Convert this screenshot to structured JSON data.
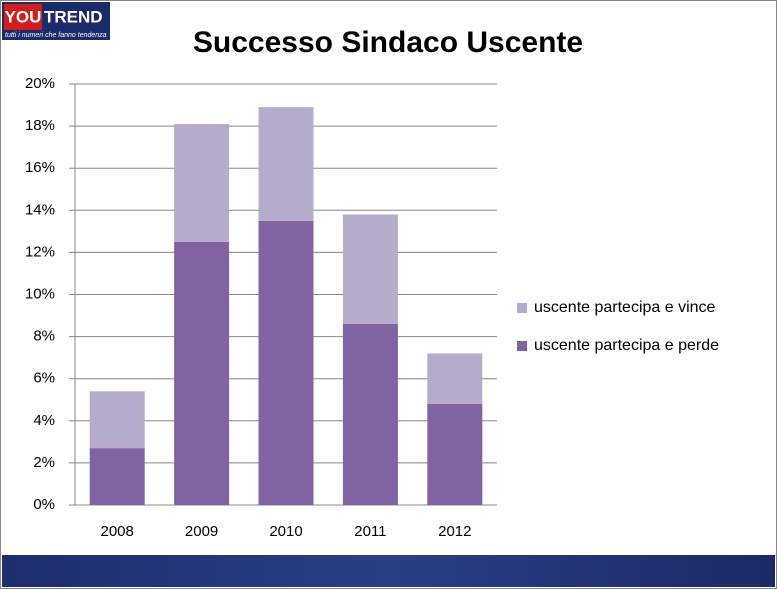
{
  "logo": {
    "left": "YOU",
    "right": "TREND",
    "tagline": "tutti i numeri che fanno tendenza"
  },
  "chart_data": {
    "type": "bar",
    "stacked": true,
    "title": "Successo Sindaco Uscente",
    "categories": [
      "2008",
      "2009",
      "2010",
      "2011",
      "2012"
    ],
    "series": [
      {
        "name": "uscente partecipa e perde",
        "color": "#8064a2",
        "values": [
          2.7,
          12.5,
          13.5,
          8.6,
          4.8
        ]
      },
      {
        "name": "uscente partecipa e vince",
        "color": "#b7abcc",
        "values": [
          2.7,
          5.6,
          5.4,
          5.2,
          2.4
        ]
      }
    ],
    "ylim": [
      0,
      20
    ],
    "yticks": [
      {
        "value": 0,
        "label": "0%"
      },
      {
        "value": 2,
        "label": "2%"
      },
      {
        "value": 4,
        "label": "4%"
      },
      {
        "value": 6,
        "label": "6%"
      },
      {
        "value": 8,
        "label": "8%"
      },
      {
        "value": 10,
        "label": "10%"
      },
      {
        "value": 12,
        "label": "12%"
      },
      {
        "value": 14,
        "label": "14%"
      },
      {
        "value": 16,
        "label": "16%"
      },
      {
        "value": 18,
        "label": "18%"
      },
      {
        "value": 20,
        "label": "20%"
      }
    ],
    "grid": true,
    "legend": "right"
  }
}
